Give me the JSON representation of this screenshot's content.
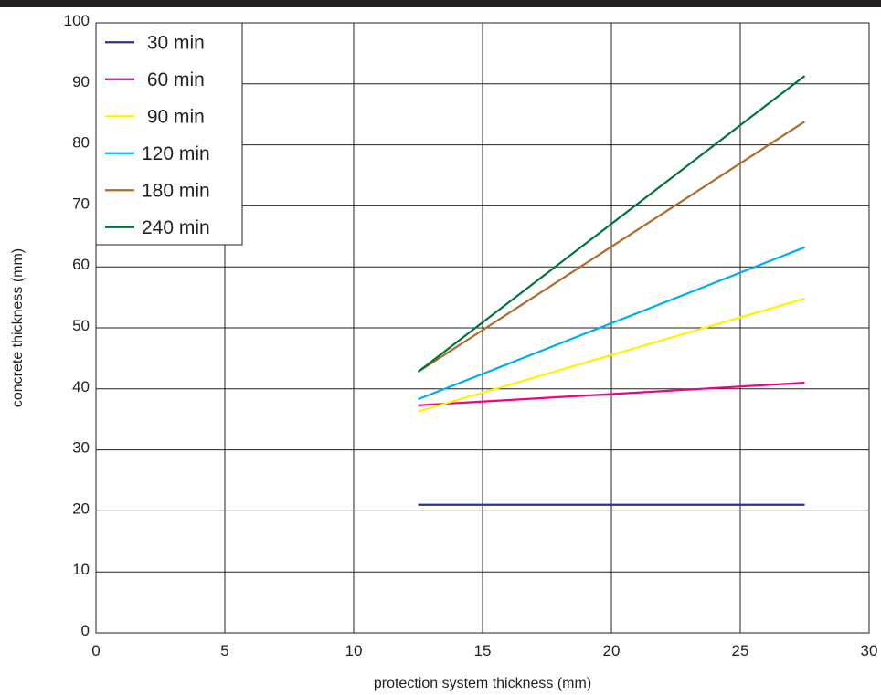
{
  "chart_data": {
    "type": "line",
    "title": "",
    "xlabel": "protection system thickness (mm)",
    "ylabel": "concrete thickness (mm)",
    "xlim": [
      0,
      30
    ],
    "ylim": [
      0,
      100
    ],
    "xticks": [
      "0",
      "5",
      "10",
      "15",
      "20",
      "25",
      "30"
    ],
    "yticks": [
      "0",
      "10",
      "20",
      "30",
      "40",
      "50",
      "60",
      "70",
      "80",
      "90",
      "100"
    ],
    "grid": true,
    "legend_position": "top-left",
    "series": [
      {
        "name": "30 min",
        "color": "#2e3192",
        "x": [
          12.5,
          27.5
        ],
        "y": [
          21,
          21
        ]
      },
      {
        "name": "60 min",
        "color": "#ec008c",
        "x": [
          12.5,
          27.5
        ],
        "y": [
          37.3,
          41
        ]
      },
      {
        "name": "90 min",
        "color": "#fff200",
        "x": [
          12.5,
          27.5
        ],
        "y": [
          36.3,
          54.8
        ]
      },
      {
        "name": "120 min",
        "color": "#00aeef",
        "x": [
          12.5,
          27.5
        ],
        "y": [
          38.3,
          63.2
        ]
      },
      {
        "name": "180 min",
        "color": "#b06a2a",
        "x": [
          12.5,
          27.5
        ],
        "y": [
          42.8,
          83.8
        ]
      },
      {
        "name": "240 min",
        "color": "#00733c",
        "x": [
          12.5,
          27.5
        ],
        "y": [
          42.8,
          91.3
        ]
      }
    ]
  }
}
